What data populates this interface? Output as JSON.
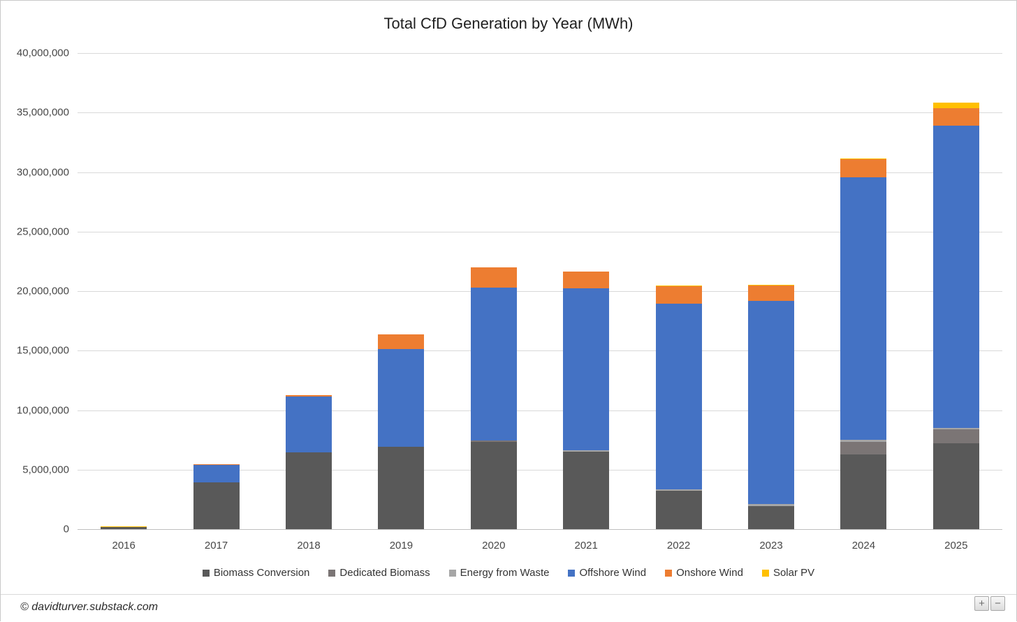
{
  "footer": {
    "copyright": "© davidturver.substack.com",
    "zoom_in_label": "+",
    "zoom_out_label": "−"
  },
  "chart_data": {
    "type": "bar",
    "stacked": true,
    "title": "Total CfD Generation by Year (MWh)",
    "xlabel": "",
    "ylabel": "",
    "categories": [
      "2016",
      "2017",
      "2018",
      "2019",
      "2020",
      "2021",
      "2022",
      "2023",
      "2024",
      "2025"
    ],
    "series": [
      {
        "name": "Biomass Conversion",
        "color": "#595959",
        "values": [
          170000,
          3930000,
          6450000,
          6920000,
          7360000,
          6510000,
          3230000,
          1940000,
          6250000,
          7240000
        ]
      },
      {
        "name": "Dedicated Biomass",
        "color": "#7b7575",
        "values": [
          0,
          0,
          0,
          0,
          70000,
          0,
          0,
          0,
          1060000,
          1140000
        ]
      },
      {
        "name": "Energy from Waste",
        "color": "#a6a6a6",
        "values": [
          0,
          0,
          0,
          0,
          0,
          100000,
          100000,
          150000,
          180000,
          150000
        ]
      },
      {
        "name": "Offshore Wind",
        "color": "#4472c4",
        "values": [
          0,
          1440000,
          4690000,
          8210000,
          12840000,
          13610000,
          15600000,
          17070000,
          22050000,
          25390000
        ]
      },
      {
        "name": "Onshore Wind",
        "color": "#ed7d31",
        "values": [
          0,
          90000,
          120000,
          1230000,
          1700000,
          1410000,
          1470000,
          1290000,
          1520000,
          1470000
        ]
      },
      {
        "name": "Solar PV",
        "color": "#ffc000",
        "values": [
          80000,
          0,
          0,
          0,
          0,
          0,
          50000,
          100000,
          60000,
          470000
        ]
      }
    ],
    "totals": [
      250000,
      5460000,
      11260000,
      16360000,
      21970000,
      21630000,
      20450000,
      20550000,
      31120000,
      35860000
    ],
    "ylim": [
      0,
      40000000
    ],
    "y_tick_step": 5000000,
    "y_tick_labels": [
      "0",
      "5,000,000",
      "10,000,000",
      "15,000,000",
      "20,000,000",
      "25,000,000",
      "30,000,000",
      "35,000,000",
      "40,000,000"
    ],
    "grid": true,
    "legend_position": "bottom"
  }
}
